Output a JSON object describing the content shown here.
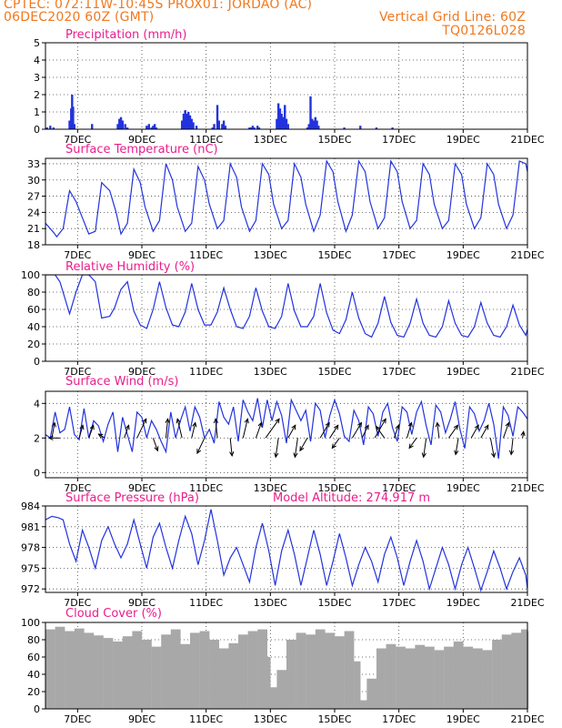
{
  "header": {
    "line1": "CPTEC:   072:11W-10:45S   PROX01: JORDAO (AC)",
    "line2": "06DEC2020 60Z (GMT)",
    "grid_note": "Vertical Grid Line: 60Z",
    "code": "TQ0126L028"
  },
  "colors": {
    "header": "#f07820",
    "title": "#e81e8c",
    "series": "#2233dd",
    "cloud": "#a8a8a8",
    "grid": "#444444"
  },
  "x_axis": {
    "ticks": [
      "7DEC",
      "9DEC",
      "11DEC",
      "13DEC",
      "15DEC",
      "17DEC",
      "19DEC",
      "21DEC"
    ],
    "tick_days": [
      7,
      9,
      11,
      13,
      15,
      17,
      19,
      21
    ],
    "range_days": [
      6.0,
      21.0
    ]
  },
  "chart_data": [
    {
      "type": "bar",
      "title": "Precipitation (mm/h)",
      "ylim": [
        0,
        5
      ],
      "yticks": [
        "0",
        "1",
        "2",
        "3",
        "4",
        "5"
      ],
      "grid": true,
      "x_unit": "day of December 2020",
      "x": [
        6.05,
        6.15,
        6.25,
        6.75,
        6.8,
        6.83,
        6.86,
        6.9,
        7.45,
        8.25,
        8.3,
        8.35,
        8.4,
        8.48,
        8.55,
        9.15,
        9.22,
        9.3,
        9.35,
        9.4,
        9.45,
        10.25,
        10.3,
        10.35,
        10.4,
        10.45,
        10.5,
        10.55,
        10.6,
        10.7,
        11.2,
        11.25,
        11.35,
        11.4,
        11.5,
        11.55,
        11.6,
        12.35,
        12.4,
        12.45,
        12.5,
        12.6,
        12.65,
        13.2,
        13.25,
        13.3,
        13.35,
        13.4,
        13.45,
        13.5,
        13.55,
        14.15,
        14.2,
        14.25,
        14.3,
        14.35,
        14.4,
        14.45,
        14.5,
        15.3,
        15.8,
        16.3,
        16.8
      ],
      "values": [
        0.1,
        0.2,
        0.1,
        0.5,
        1.2,
        2.0,
        1.3,
        0.3,
        0.3,
        0.3,
        0.6,
        0.7,
        0.5,
        0.3,
        0.1,
        0.2,
        0.3,
        0.1,
        0.2,
        0.3,
        0.1,
        0.5,
        0.9,
        1.1,
        0.9,
        1.0,
        0.8,
        0.6,
        0.4,
        0.2,
        0.1,
        0.3,
        1.4,
        0.5,
        0.3,
        0.5,
        0.2,
        0.1,
        0.1,
        0.2,
        0.1,
        0.2,
        0.1,
        0.6,
        1.5,
        1.2,
        0.9,
        0.7,
        1.4,
        0.6,
        0.3,
        0.1,
        0.3,
        1.9,
        0.6,
        0.5,
        0.7,
        0.5,
        0.2,
        0.1,
        0.2,
        0.1,
        0.1
      ]
    },
    {
      "type": "line",
      "title": "Surface Temperature (nC)",
      "ylim": [
        18,
        34
      ],
      "yticks": [
        "18",
        "21",
        "24",
        "27",
        "30",
        "33"
      ],
      "grid": true,
      "x_unit": "day of December 2020",
      "x": [
        6.0,
        6.25,
        6.35,
        6.55,
        6.75,
        6.95,
        7.15,
        7.35,
        7.55,
        7.75,
        8.0,
        8.2,
        8.35,
        8.55,
        8.75,
        8.95,
        9.1,
        9.35,
        9.55,
        9.75,
        9.95,
        10.1,
        10.35,
        10.55,
        10.75,
        10.95,
        11.1,
        11.35,
        11.55,
        11.75,
        11.95,
        12.1,
        12.35,
        12.55,
        12.75,
        12.95,
        13.1,
        13.35,
        13.55,
        13.75,
        13.95,
        14.1,
        14.35,
        14.55,
        14.75,
        14.95,
        15.1,
        15.35,
        15.55,
        15.75,
        15.95,
        16.1,
        16.35,
        16.55,
        16.75,
        16.95,
        17.1,
        17.35,
        17.55,
        17.75,
        17.95,
        18.1,
        18.35,
        18.55,
        18.75,
        18.95,
        19.1,
        19.35,
        19.55,
        19.75,
        19.95,
        20.1,
        20.35,
        20.55,
        20.75,
        20.95,
        21.0
      ],
      "values": [
        22.0,
        20.3,
        19.5,
        21.0,
        28.0,
        26.0,
        23.0,
        20.0,
        20.5,
        29.5,
        28.0,
        24.0,
        20.0,
        22.0,
        32.0,
        29.5,
        25.0,
        20.5,
        22.5,
        33.0,
        30.0,
        25.0,
        20.5,
        22.0,
        32.5,
        30.0,
        25.5,
        21.0,
        22.5,
        33.0,
        30.5,
        25.0,
        20.5,
        22.5,
        33.0,
        31.0,
        25.5,
        21.0,
        22.5,
        33.0,
        30.5,
        25.5,
        20.5,
        23.5,
        33.5,
        31.5,
        26.0,
        20.5,
        23.5,
        33.5,
        31.5,
        26.0,
        21.0,
        23.0,
        33.5,
        31.5,
        26.0,
        21.0,
        22.5,
        33.0,
        31.0,
        25.5,
        21.0,
        22.5,
        33.0,
        31.0,
        25.5,
        21.0,
        23.0,
        33.0,
        31.0,
        25.5,
        21.0,
        23.5,
        33.5,
        33.0,
        31.5
      ]
    },
    {
      "type": "line",
      "title": "Relative Humidity (%)",
      "ylim": [
        0,
        100
      ],
      "yticks": [
        "0",
        "20",
        "40",
        "60",
        "80",
        "100"
      ],
      "grid": true,
      "x_unit": "day of December 2020",
      "x": [
        6.0,
        6.3,
        6.45,
        6.75,
        6.95,
        7.15,
        7.35,
        7.55,
        7.75,
        8.0,
        8.15,
        8.35,
        8.55,
        8.75,
        8.95,
        9.15,
        9.35,
        9.55,
        9.75,
        9.95,
        10.15,
        10.35,
        10.55,
        10.75,
        10.95,
        11.15,
        11.35,
        11.55,
        11.75,
        11.95,
        12.15,
        12.35,
        12.55,
        12.75,
        12.95,
        13.15,
        13.35,
        13.55,
        13.75,
        13.95,
        14.15,
        14.35,
        14.55,
        14.75,
        14.95,
        15.15,
        15.35,
        15.55,
        15.75,
        15.95,
        16.15,
        16.35,
        16.55,
        16.75,
        16.95,
        17.15,
        17.35,
        17.55,
        17.75,
        17.95,
        18.15,
        18.35,
        18.55,
        18.75,
        18.95,
        19.15,
        19.35,
        19.55,
        19.75,
        19.95,
        20.15,
        20.35,
        20.55,
        20.75,
        20.95,
        21.0
      ],
      "values": [
        100,
        100,
        92,
        55,
        80,
        100,
        100,
        92,
        50,
        52,
        62,
        83,
        92,
        58,
        42,
        38,
        60,
        92,
        62,
        42,
        40,
        57,
        90,
        60,
        42,
        42,
        57,
        85,
        60,
        40,
        38,
        52,
        85,
        58,
        40,
        38,
        52,
        90,
        58,
        40,
        40,
        52,
        90,
        56,
        36,
        32,
        48,
        80,
        50,
        32,
        28,
        44,
        75,
        45,
        30,
        28,
        44,
        72,
        44,
        30,
        28,
        40,
        70,
        44,
        30,
        28,
        40,
        68,
        44,
        30,
        28,
        40,
        65,
        42,
        30,
        37
      ]
    },
    {
      "type": "line",
      "title": "Surface Wind (m/s)",
      "ylim": [
        -0.3,
        4.7
      ],
      "yticks": [
        "0",
        "2",
        "4"
      ],
      "grid": true,
      "x_unit": "day of December 2020",
      "x": [
        6.0,
        6.15,
        6.3,
        6.45,
        6.6,
        6.75,
        6.9,
        7.05,
        7.2,
        7.35,
        7.5,
        7.65,
        7.8,
        7.95,
        8.1,
        8.25,
        8.4,
        8.55,
        8.7,
        8.85,
        9.0,
        9.15,
        9.3,
        9.45,
        9.6,
        9.75,
        9.9,
        10.05,
        10.2,
        10.35,
        10.5,
        10.65,
        10.8,
        10.95,
        11.1,
        11.25,
        11.4,
        11.55,
        11.7,
        11.85,
        12.0,
        12.15,
        12.3,
        12.45,
        12.6,
        12.75,
        12.9,
        13.05,
        13.2,
        13.35,
        13.5,
        13.65,
        13.8,
        13.95,
        14.1,
        14.25,
        14.4,
        14.55,
        14.7,
        14.85,
        15.0,
        15.15,
        15.3,
        15.45,
        15.6,
        15.75,
        15.9,
        16.05,
        16.2,
        16.35,
        16.5,
        16.65,
        16.8,
        16.95,
        17.1,
        17.25,
        17.4,
        17.55,
        17.7,
        17.85,
        18.0,
        18.15,
        18.3,
        18.45,
        18.6,
        18.75,
        18.9,
        19.05,
        19.2,
        19.35,
        19.5,
        19.65,
        19.8,
        19.95,
        20.1,
        20.25,
        20.4,
        20.55,
        20.7,
        20.85,
        21.0
      ],
      "values": [
        2.2,
        2.0,
        3.5,
        2.3,
        2.5,
        3.8,
        2.2,
        1.9,
        3.7,
        2.0,
        3.0,
        2.7,
        1.8,
        2.8,
        3.5,
        1.2,
        3.2,
        2.2,
        1.2,
        3.5,
        3.2,
        2.0,
        3.0,
        2.5,
        1.8,
        1.2,
        3.5,
        2.0,
        3.0,
        3.8,
        2.4,
        3.8,
        3.2,
        2.0,
        2.5,
        1.7,
        4.1,
        3.2,
        2.8,
        3.8,
        1.8,
        4.2,
        3.5,
        3.0,
        4.3,
        2.6,
        4.2,
        3.0,
        4.1,
        3.3,
        1.7,
        4.2,
        3.6,
        3.0,
        3.6,
        1.8,
        4.0,
        3.6,
        2.0,
        3.3,
        4.2,
        3.4,
        2.1,
        1.8,
        3.6,
        3.0,
        1.6,
        3.8,
        3.4,
        2.1,
        3.5,
        4.0,
        2.6,
        1.8,
        3.8,
        3.5,
        2.2,
        3.5,
        4.1,
        2.7,
        1.6,
        3.9,
        3.5,
        2.3,
        3.1,
        4.1,
        2.5,
        1.4,
        3.8,
        3.4,
        2.4,
        3.0,
        4.0,
        2.8,
        0.8,
        3.8,
        3.3,
        2.1,
        3.8,
        3.5,
        3.1
      ]
    },
    {
      "type": "line",
      "title": "Surface Pressure (hPa)",
      "annotation": "Model Altitude: 274.917 m",
      "ylim": [
        971.5,
        984
      ],
      "yticks": [
        "972",
        "975",
        "978",
        "981",
        "984"
      ],
      "grid": true,
      "x_unit": "day of December 2020",
      "x": [
        6.0,
        6.2,
        6.4,
        6.55,
        6.75,
        6.95,
        7.15,
        7.35,
        7.55,
        7.75,
        7.95,
        8.15,
        8.35,
        8.55,
        8.75,
        8.95,
        9.15,
        9.35,
        9.55,
        9.75,
        9.95,
        10.15,
        10.35,
        10.55,
        10.75,
        10.95,
        11.15,
        11.35,
        11.55,
        11.75,
        11.95,
        12.15,
        12.35,
        12.55,
        12.75,
        12.95,
        13.15,
        13.35,
        13.55,
        13.75,
        13.95,
        14.15,
        14.35,
        14.55,
        14.75,
        14.95,
        15.15,
        15.35,
        15.55,
        15.75,
        15.95,
        16.15,
        16.35,
        16.55,
        16.75,
        16.95,
        17.15,
        17.35,
        17.55,
        17.75,
        17.95,
        18.15,
        18.35,
        18.55,
        18.75,
        18.95,
        19.15,
        19.35,
        19.55,
        19.75,
        19.95,
        20.15,
        20.35,
        20.55,
        20.75,
        20.95,
        21.0
      ],
      "values": [
        982.0,
        982.5,
        982.3,
        982.0,
        978.5,
        976.0,
        980.5,
        978.0,
        975.0,
        979.0,
        981.0,
        978.5,
        976.5,
        978.5,
        982.0,
        978.5,
        975.0,
        979.5,
        981.5,
        978.0,
        975.0,
        979.0,
        982.5,
        980.0,
        975.5,
        979.0,
        983.5,
        979.0,
        974.0,
        976.5,
        978.0,
        975.5,
        973.0,
        978.0,
        981.5,
        977.5,
        972.5,
        977.5,
        980.5,
        977.0,
        972.5,
        976.5,
        980.5,
        977.0,
        972.5,
        976.0,
        980.0,
        976.5,
        972.5,
        975.5,
        978.0,
        976.0,
        973.0,
        977.0,
        979.5,
        976.5,
        972.5,
        976.0,
        979.0,
        976.0,
        972.0,
        975.0,
        978.0,
        975.5,
        972.0,
        975.5,
        978.0,
        975.0,
        971.8,
        974.5,
        977.5,
        975.0,
        972.0,
        974.5,
        976.5,
        974.0,
        972.0
      ]
    },
    {
      "type": "area",
      "title": "Cloud Cover (%)",
      "ylim": [
        0,
        100
      ],
      "yticks": [
        "0",
        "20",
        "40",
        "60",
        "80",
        "100"
      ],
      "grid": true,
      "x_unit": "day of December 2020",
      "x": [
        6.0,
        6.3,
        6.6,
        6.9,
        7.2,
        7.5,
        7.8,
        8.1,
        8.4,
        8.7,
        9.0,
        9.3,
        9.6,
        9.9,
        10.2,
        10.5,
        10.8,
        11.1,
        11.4,
        11.7,
        12.0,
        12.3,
        12.6,
        12.9,
        13.0,
        13.2,
        13.5,
        13.8,
        14.1,
        14.4,
        14.7,
        15.0,
        15.3,
        15.6,
        15.8,
        16.0,
        16.3,
        16.6,
        16.9,
        17.2,
        17.5,
        17.8,
        18.1,
        18.4,
        18.7,
        19.0,
        19.3,
        19.6,
        19.9,
        20.2,
        20.5,
        20.8,
        21.0
      ],
      "values": [
        92,
        95,
        90,
        93,
        88,
        85,
        82,
        78,
        84,
        90,
        80,
        72,
        86,
        92,
        75,
        88,
        90,
        80,
        70,
        76,
        86,
        90,
        92,
        60,
        25,
        45,
        80,
        88,
        86,
        92,
        88,
        84,
        90,
        55,
        10,
        35,
        70,
        75,
        72,
        70,
        74,
        72,
        68,
        72,
        78,
        72,
        70,
        68,
        80,
        86,
        88,
        92,
        90
      ]
    }
  ],
  "wind_arrows": {
    "x": [
      6.2,
      6.45,
      7.05,
      7.35,
      7.85,
      8.45,
      8.85,
      9.35,
      9.75,
      10.25,
      10.55,
      10.95,
      11.35,
      11.75,
      12.15,
      12.55,
      12.85,
      13.25,
      13.55,
      13.85,
      14.15,
      14.55,
      14.85,
      15.15,
      15.55,
      15.85,
      16.25,
      16.55,
      16.85,
      17.25,
      17.55,
      17.85,
      18.25,
      18.55,
      18.85,
      19.25,
      19.55,
      19.85,
      20.25,
      20.55,
      20.85
    ],
    "u": [
      0.3,
      -1.2,
      0.4,
      0.5,
      -0.7,
      0.5,
      1.0,
      0.5,
      0.2,
      -0.5,
      0.4,
      -0.8,
      -0.2,
      0.2,
      0.5,
      0.6,
      1.5,
      -0.3,
      0.8,
      -0.3,
      -0.8,
      1.0,
      0.9,
      -0.8,
      1.0,
      0.7,
      1.2,
      -0.9,
      0.5,
      0.5,
      -0.8,
      -0.3,
      -0.2,
      1.0,
      -0.3,
      0.8,
      0.8,
      0.4,
      0.6,
      -0.2,
      0.1
    ],
    "v": [
      1.2,
      0.0,
      1.0,
      1.0,
      0.3,
      1.0,
      1.5,
      -1.0,
      1.5,
      1.5,
      1.2,
      -1.2,
      1.5,
      -1.4,
      1.5,
      1.2,
      1.5,
      -1.5,
      1.0,
      -1.5,
      -1.0,
      1.2,
      1.0,
      -0.8,
      1.2,
      1.0,
      1.5,
      0.9,
      1.0,
      1.2,
      -0.8,
      -1.5,
      1.2,
      1.0,
      -1.3,
      1.0,
      1.0,
      -1.5,
      1.2,
      -1.3,
      0.5
    ]
  }
}
